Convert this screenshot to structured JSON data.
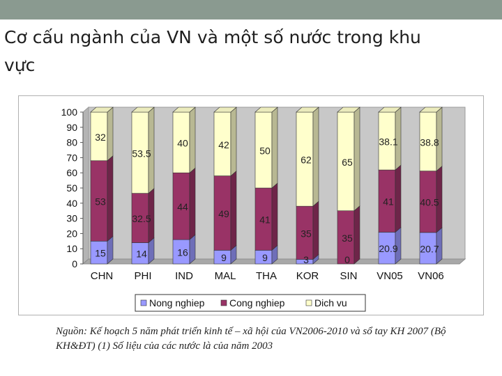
{
  "slide": {
    "title": "Cơ cấu ngành của VN và một số nước trong khu vực",
    "source_note": "Nguồn: Kế hoạch 5 năm phát triển kinh tế – xã hội của VN2006-2010 và sổ tay KH 2007 (Bộ KH&ĐT) (1) Số liệu của các nước là của năm 2003"
  },
  "chart_data": {
    "type": "bar",
    "stacked": true,
    "three_d": true,
    "categories": [
      "CHN",
      "PHI",
      "IND",
      "MAL",
      "THA",
      "KOR",
      "SIN",
      "VN05",
      "VN06"
    ],
    "series": [
      {
        "name": "Nong nghiep",
        "color": "#9999ff",
        "values": [
          15,
          14,
          16,
          9,
          9,
          3,
          0,
          20.9,
          20.7
        ],
        "labels": [
          "15",
          "14",
          "16",
          "9",
          "9",
          "3",
          "0",
          "20.9",
          "20.7"
        ]
      },
      {
        "name": "Cong nghiep",
        "color": "#993366",
        "values": [
          53,
          32.5,
          44,
          49,
          41,
          35,
          35,
          41,
          40.5
        ],
        "labels": [
          "53",
          "32.5",
          "44",
          "49",
          "41",
          "35",
          "35",
          "41",
          "40.5"
        ]
      },
      {
        "name": "Dich vu",
        "color": "#ffffcc",
        "values": [
          32,
          53.5,
          40,
          42,
          50,
          62,
          65,
          38.1,
          38.8
        ],
        "labels": [
          "32",
          "53.5",
          "40",
          "42",
          "50",
          "62",
          "65",
          "38.1",
          "38.8"
        ]
      }
    ],
    "yticks": [
      "0",
      "10",
      "20",
      "30",
      "40",
      "50",
      "60",
      "70",
      "80",
      "90",
      "100"
    ],
    "ylim": [
      0,
      100
    ],
    "legend_position": "bottom",
    "grid": false
  }
}
